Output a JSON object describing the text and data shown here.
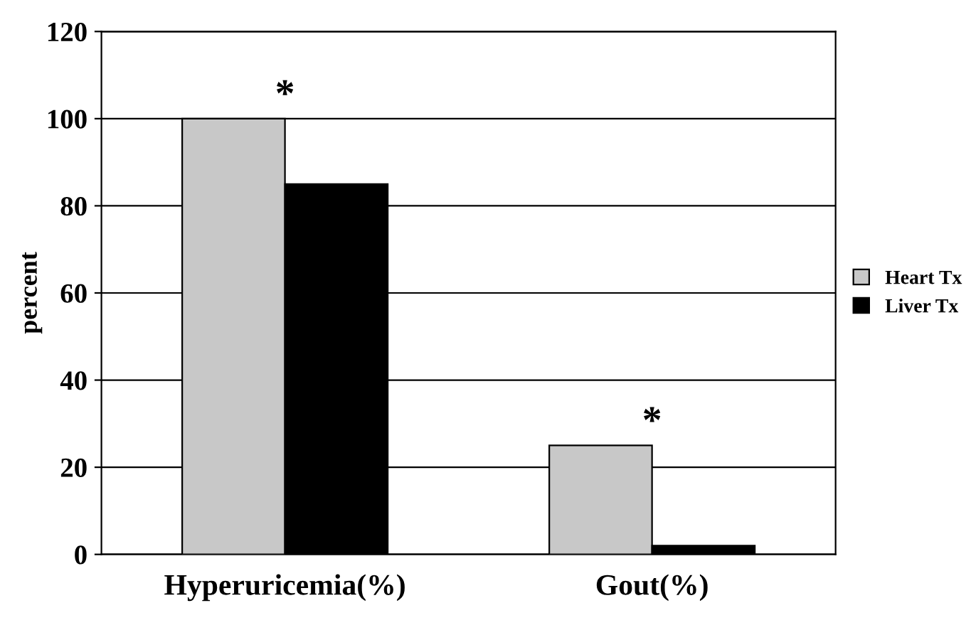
{
  "chart_data": {
    "type": "bar",
    "ylabel": "percent",
    "categories": [
      "Hyperuricemia(%)",
      "Gout(%)"
    ],
    "series": [
      {
        "name": "Heart Tx",
        "color": "#c8c8c8",
        "values": [
          100,
          25
        ]
      },
      {
        "name": "Liver Tx",
        "color": "#000000",
        "values": [
          85,
          2
        ]
      }
    ],
    "ylim": [
      0,
      120
    ],
    "yticks": [
      0,
      20,
      40,
      60,
      80,
      100,
      120
    ],
    "grid": "y",
    "legend": "right",
    "annotations": [
      {
        "text": "*",
        "x": "Hyperuricemia(%)",
        "y": 100
      },
      {
        "text": "*",
        "x": "Gout(%)",
        "y": 25
      }
    ]
  }
}
